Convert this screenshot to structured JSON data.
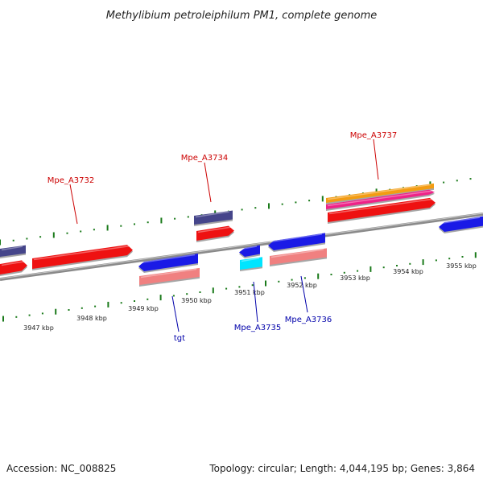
{
  "title": "Methylibium petroleiphilum PM1, complete genome",
  "footer": {
    "accession": "Accession: NC_008825",
    "topology": "Topology: circular; Length: 4,044,195 bp; Genes: 3,864"
  },
  "colors": {
    "backbone": "#8a8a8a",
    "tick": "#1a7a1a",
    "forward_label": "#cc0000",
    "reverse_label": "#0000aa",
    "red": "#ee1111",
    "pink": "#f08080",
    "blue": "#1a1ae6",
    "navy": "#45458a",
    "cyan": "#00e5ff",
    "orange": "#f39c12",
    "magenta": "#ee2288"
  },
  "scale_labels": [
    "3947 kbp",
    "3948 kbp",
    "3949 kbp",
    "3950 kbp",
    "3951 kbp",
    "3952 kbp",
    "3953 kbp",
    "3954 kbp",
    "3955 kbp"
  ],
  "gene_labels": {
    "forward": [
      "Mpe_A3732",
      "Mpe_A3734",
      "Mpe_A3737"
    ],
    "reverse": [
      "tgt",
      "Mpe_A3735",
      "Mpe_A3736"
    ]
  }
}
